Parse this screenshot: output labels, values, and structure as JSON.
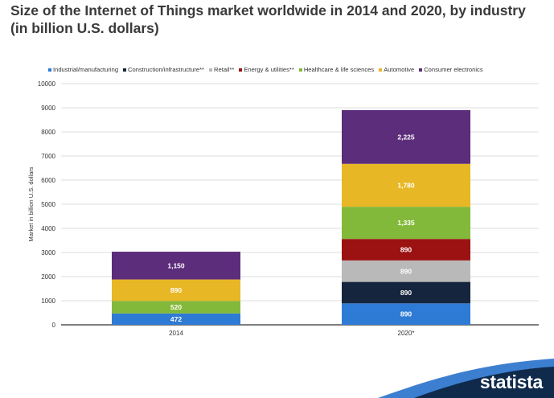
{
  "chart_data": {
    "type": "bar",
    "stacked": true,
    "title": "Size of the Internet of Things market worldwide in 2014 and 2020, by industry (in billion U.S. dollars)",
    "xlabel": "",
    "ylabel": "Market in billion U.S. dollars",
    "ylim": [
      0,
      10000
    ],
    "yticks": [
      0,
      1000,
      2000,
      3000,
      4000,
      5000,
      6000,
      7000,
      8000,
      9000,
      10000
    ],
    "grid": true,
    "legend_position": "top",
    "categories": [
      "2014",
      "2020*"
    ],
    "series": [
      {
        "name": "Industrial/manufacturing",
        "color": "#2e7bd6",
        "values": [
          472,
          890
        ],
        "labels": [
          "472",
          "890"
        ]
      },
      {
        "name": "Construction/infrastructure**",
        "color": "#15253d",
        "values": [
          0,
          890
        ],
        "labels": [
          "",
          "890"
        ]
      },
      {
        "name": "Retail**",
        "color": "#b9b9b9",
        "values": [
          0,
          890
        ],
        "labels": [
          "",
          "890"
        ]
      },
      {
        "name": "Energy & utilities**",
        "color": "#9c1212",
        "values": [
          0,
          890
        ],
        "labels": [
          "",
          "890"
        ]
      },
      {
        "name": "Healthcare & life sciences",
        "color": "#83b93a",
        "values": [
          520,
          1335
        ],
        "labels": [
          "520",
          "1,335"
        ]
      },
      {
        "name": "Automotive",
        "color": "#e8b726",
        "values": [
          890,
          1780
        ],
        "labels": [
          "890",
          "1,780"
        ]
      },
      {
        "name": "Consumer electronics",
        "color": "#5c2d7a",
        "values": [
          1150,
          2225
        ],
        "labels": [
          "1,150",
          "2,225"
        ]
      }
    ]
  },
  "brand": {
    "name": "statista",
    "colors": {
      "dark": "#0f2a4b",
      "light": "#3c7fd0"
    }
  }
}
